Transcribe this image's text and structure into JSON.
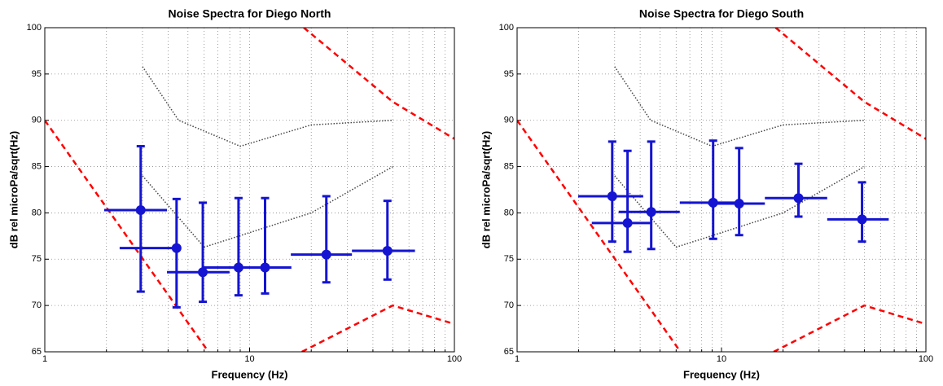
{
  "chart_data": [
    {
      "type": "errorbar",
      "title": "Noise Spectra for Diego North",
      "xlabel": "Frequency (Hz)",
      "ylabel": "dB rel microPa/sqrt(Hz)",
      "xlim": [
        1,
        100
      ],
      "ylim": [
        65,
        100
      ],
      "log_x": true,
      "grid": true,
      "xticks": [
        1,
        10,
        100
      ],
      "xminorticks": [
        2,
        3,
        4,
        5,
        6,
        7,
        8,
        9,
        20,
        30,
        40,
        50,
        60,
        70,
        80,
        90
      ],
      "yticks": [
        65,
        70,
        75,
        80,
        85,
        90,
        95,
        100
      ],
      "series": [
        {
          "color": "#1414d2",
          "x": [
            2.94,
            4.4,
            5.91,
            8.83,
            11.9,
            23.7,
            47.1
          ],
          "values": [
            80.3,
            76.2,
            73.6,
            74.1,
            74.1,
            75.5,
            75.9
          ],
          "y_lower": [
            71.5,
            69.8,
            70.4,
            71.1,
            71.3,
            72.5,
            72.8
          ],
          "y_upper": [
            87.2,
            81.5,
            81.1,
            81.6,
            81.6,
            81.8,
            81.3
          ],
          "x_lower": [
            1.95,
            2.32,
            3.95,
            5.96,
            8.6,
            15.9,
            31.6
          ],
          "x_upper": [
            3.95,
            4.61,
            7.98,
            12.4,
            16.0,
            31.6,
            64.2
          ]
        }
      ],
      "reference_lines": [
        {
          "color": "#ff0000",
          "style": "dashed",
          "x": [
            1,
            6.3
          ],
          "values": [
            90,
            65
          ]
        },
        {
          "color": "#ff0000",
          "style": "dashed",
          "x": [
            18.4,
            50,
            100
          ],
          "values": [
            100,
            92,
            88
          ]
        },
        {
          "color": "#ff0000",
          "style": "dashed",
          "x": [
            18,
            50,
            100
          ],
          "values": [
            65,
            70,
            68
          ]
        },
        {
          "color": "#444444",
          "style": "dotted",
          "x": [
            3,
            4.5,
            9,
            20,
            50
          ],
          "values": [
            95.8,
            90,
            87.2,
            89.5,
            90
          ]
        },
        {
          "color": "#444444",
          "style": "dotted",
          "x": [
            3,
            6,
            20,
            50
          ],
          "values": [
            84,
            76.3,
            80,
            85
          ]
        }
      ]
    },
    {
      "type": "errorbar",
      "title": "Noise Spectra for Diego South",
      "xlabel": "Frequency (Hz)",
      "ylabel": "dB rel microPa/sqrt(Hz)",
      "xlim": [
        1,
        100
      ],
      "ylim": [
        65,
        100
      ],
      "log_x": true,
      "grid": true,
      "xticks": [
        1,
        10,
        100
      ],
      "xminorticks": [
        2,
        3,
        4,
        5,
        6,
        7,
        8,
        9,
        20,
        30,
        40,
        50,
        60,
        70,
        80,
        90
      ],
      "yticks": [
        65,
        70,
        75,
        80,
        85,
        90,
        95,
        100
      ],
      "series": [
        {
          "color": "#1414d2",
          "x": [
            2.92,
            3.47,
            4.53,
            9.1,
            12.2,
            23.8,
            48.7
          ],
          "values": [
            81.8,
            78.9,
            80.1,
            81.1,
            81.0,
            81.6,
            79.3
          ],
          "y_lower": [
            76.9,
            75.8,
            76.1,
            77.2,
            77.6,
            79.6,
            76.9
          ],
          "y_upper": [
            87.7,
            86.7,
            87.7,
            87.8,
            87.0,
            85.3,
            83.3
          ],
          "x_lower": [
            1.99,
            2.32,
            3.14,
            6.25,
            8.6,
            16.3,
            32.9
          ],
          "x_upper": [
            4.14,
            4.53,
            6.25,
            12.4,
            16.3,
            32.9,
            65.8
          ]
        }
      ],
      "reference_lines": [
        {
          "color": "#ff0000",
          "style": "dashed",
          "x": [
            1,
            6.3
          ],
          "values": [
            90,
            65
          ]
        },
        {
          "color": "#ff0000",
          "style": "dashed",
          "x": [
            18.4,
            50,
            100
          ],
          "values": [
            100,
            92,
            88
          ]
        },
        {
          "color": "#ff0000",
          "style": "dashed",
          "x": [
            18,
            50,
            100
          ],
          "values": [
            65,
            70,
            68
          ]
        },
        {
          "color": "#444444",
          "style": "dotted",
          "x": [
            3,
            4.5,
            9,
            20,
            50
          ],
          "values": [
            95.8,
            90,
            87.2,
            89.5,
            90
          ]
        },
        {
          "color": "#444444",
          "style": "dotted",
          "x": [
            3,
            6,
            20,
            50
          ],
          "values": [
            84,
            76.3,
            80,
            85
          ]
        }
      ]
    }
  ]
}
